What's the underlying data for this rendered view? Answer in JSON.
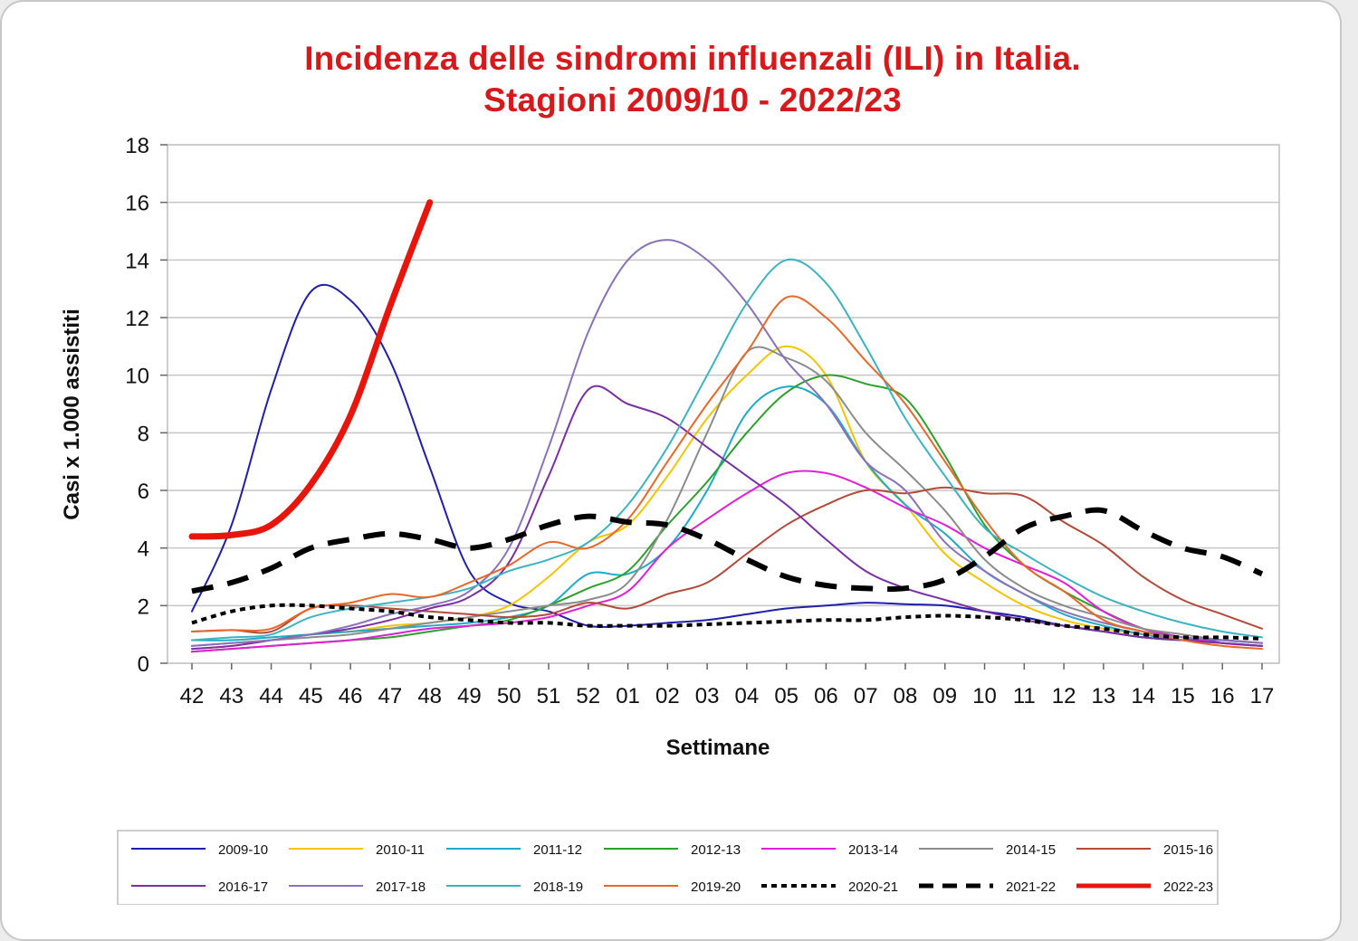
{
  "chart_data": {
    "type": "line",
    "title": [
      "Incidenza delle sindromi influenzali (ILI) in Italia.",
      "Stagioni 2009/10 - 2022/23"
    ],
    "xlabel": "Settimane",
    "ylabel": "Casi x 1.000 assistiti",
    "ylim": [
      0,
      18
    ],
    "yticks": [
      0,
      2,
      4,
      6,
      8,
      10,
      12,
      14,
      16,
      18
    ],
    "grid": true,
    "legend_position": "bottom",
    "categories": [
      "42",
      "43",
      "44",
      "45",
      "46",
      "47",
      "48",
      "49",
      "50",
      "51",
      "52",
      "01",
      "02",
      "03",
      "04",
      "05",
      "06",
      "07",
      "08",
      "09",
      "10",
      "11",
      "12",
      "13",
      "14",
      "15",
      "16",
      "17"
    ],
    "series": [
      {
        "name": "2009-10",
        "color": "#1f1fa8",
        "width": 2,
        "dash": "",
        "values": [
          1.8,
          4.8,
          9.5,
          12.9,
          12.6,
          10.5,
          6.8,
          3.2,
          2.1,
          1.8,
          1.3,
          1.3,
          1.4,
          1.5,
          1.7,
          1.9,
          2.0,
          2.1,
          2.05,
          2.0,
          1.8,
          1.6,
          1.3,
          1.1,
          0.9,
          0.8,
          0.8,
          0.7
        ]
      },
      {
        "name": "2010-11",
        "color": "#f5c400",
        "width": 2,
        "dash": "",
        "values": [
          0.5,
          0.6,
          0.8,
          1.0,
          1.1,
          1.3,
          1.4,
          1.6,
          2.0,
          3.0,
          4.2,
          4.8,
          6.5,
          8.5,
          10.0,
          11.0,
          10.0,
          7.0,
          5.5,
          3.8,
          2.8,
          2.0,
          1.5,
          1.2,
          1.0,
          0.8,
          0.7,
          0.6
        ]
      },
      {
        "name": "2011-12",
        "color": "#1faac8",
        "width": 2,
        "dash": "",
        "values": [
          0.8,
          0.8,
          0.9,
          1.0,
          1.1,
          1.2,
          1.3,
          1.4,
          1.6,
          2.0,
          3.1,
          3.1,
          4.0,
          6.0,
          8.7,
          9.6,
          9.0,
          7.0,
          5.5,
          4.5,
          3.2,
          2.4,
          1.7,
          1.3,
          1.0,
          0.8,
          0.7,
          0.6
        ]
      },
      {
        "name": "2012-13",
        "color": "#2ca02c",
        "width": 2,
        "dash": "",
        "values": [
          0.4,
          0.5,
          0.6,
          0.7,
          0.8,
          0.9,
          1.1,
          1.3,
          1.5,
          2.0,
          2.6,
          3.2,
          4.8,
          6.3,
          8.0,
          9.4,
          10.0,
          9.7,
          9.2,
          7.2,
          4.8,
          3.4,
          2.5,
          1.8,
          1.2,
          0.9,
          0.7,
          0.6
        ]
      },
      {
        "name": "2013-14",
        "color": "#e21fd6",
        "width": 2,
        "dash": "",
        "values": [
          0.4,
          0.5,
          0.6,
          0.7,
          0.8,
          1.0,
          1.2,
          1.3,
          1.4,
          1.6,
          2.0,
          2.5,
          4.0,
          5.0,
          5.9,
          6.6,
          6.6,
          6.1,
          5.4,
          4.8,
          4.0,
          3.4,
          2.8,
          1.8,
          1.2,
          0.9,
          0.7,
          0.6
        ]
      },
      {
        "name": "2014-15",
        "color": "#8c8c8c",
        "width": 2,
        "dash": "",
        "values": [
          0.6,
          0.7,
          0.8,
          0.9,
          1.0,
          1.2,
          1.4,
          1.6,
          1.8,
          2.0,
          2.2,
          2.8,
          5.0,
          8.0,
          10.8,
          10.6,
          9.8,
          8.0,
          6.7,
          5.3,
          3.6,
          2.6,
          2.0,
          1.6,
          1.2,
          1.0,
          0.8,
          0.7
        ]
      },
      {
        "name": "2015-16",
        "color": "#b34a3a",
        "width": 2,
        "dash": "",
        "values": [
          1.1,
          1.15,
          1.1,
          1.9,
          2.0,
          1.9,
          1.8,
          1.7,
          1.6,
          1.7,
          2.1,
          1.9,
          2.4,
          2.8,
          3.8,
          4.8,
          5.5,
          6.0,
          5.9,
          6.1,
          5.9,
          5.8,
          4.9,
          4.1,
          3.0,
          2.2,
          1.7,
          1.2
        ]
      },
      {
        "name": "2016-17",
        "color": "#7a2fa3",
        "width": 2,
        "dash": "",
        "values": [
          0.5,
          0.6,
          0.8,
          1.0,
          1.2,
          1.5,
          1.9,
          2.3,
          3.5,
          6.5,
          9.5,
          9.0,
          8.5,
          7.5,
          6.5,
          5.5,
          4.3,
          3.2,
          2.6,
          2.2,
          1.8,
          1.5,
          1.3,
          1.1,
          0.9,
          0.8,
          0.7,
          0.6
        ]
      },
      {
        "name": "2017-18",
        "color": "#8a72b8",
        "width": 2,
        "dash": "",
        "values": [
          0.6,
          0.7,
          0.8,
          1.0,
          1.3,
          1.7,
          2.0,
          2.5,
          4.0,
          7.5,
          11.5,
          14.0,
          14.7,
          14.0,
          12.5,
          10.5,
          9.0,
          7.0,
          6.0,
          4.2,
          3.2,
          2.4,
          1.8,
          1.4,
          1.1,
          0.9,
          0.8,
          0.7
        ]
      },
      {
        "name": "2018-19",
        "color": "#3cb4c0",
        "width": 2,
        "dash": "",
        "values": [
          0.8,
          0.9,
          1.0,
          1.6,
          1.9,
          2.1,
          2.3,
          2.6,
          3.2,
          3.6,
          4.2,
          5.5,
          7.5,
          10.0,
          12.5,
          14.0,
          13.2,
          11.0,
          8.5,
          6.5,
          4.7,
          3.8,
          3.0,
          2.3,
          1.8,
          1.4,
          1.1,
          0.9
        ]
      },
      {
        "name": "2019-20",
        "color": "#e8682a",
        "width": 2,
        "dash": "",
        "values": [
          1.1,
          1.15,
          1.2,
          1.9,
          2.1,
          2.4,
          2.3,
          2.8,
          3.4,
          4.2,
          4.0,
          5.0,
          7.0,
          9.0,
          10.8,
          12.7,
          12.0,
          10.5,
          9.0,
          7.0,
          5.0,
          3.4,
          2.5,
          1.5,
          1.1,
          0.8,
          0.6,
          0.5
        ]
      },
      {
        "name": "2020-21",
        "color": "#000000",
        "width": 4,
        "dash": "6,5",
        "values": [
          1.4,
          1.8,
          2.0,
          2.0,
          1.9,
          1.8,
          1.6,
          1.5,
          1.4,
          1.4,
          1.3,
          1.3,
          1.3,
          1.35,
          1.4,
          1.45,
          1.5,
          1.5,
          1.6,
          1.65,
          1.6,
          1.5,
          1.3,
          1.2,
          1.0,
          0.9,
          0.9,
          0.85
        ]
      },
      {
        "name": "2021-22",
        "color": "#000000",
        "width": 6,
        "dash": "24,16",
        "values": [
          2.5,
          2.8,
          3.3,
          4.0,
          4.3,
          4.5,
          4.3,
          4.0,
          4.3,
          4.8,
          5.1,
          4.9,
          4.8,
          4.3,
          3.6,
          3.0,
          2.7,
          2.6,
          2.6,
          2.9,
          3.7,
          4.7,
          5.1,
          5.3,
          4.6,
          4.0,
          3.7,
          3.1
        ]
      },
      {
        "name": "2022-23",
        "color": "#e8150d",
        "width": 7,
        "dash": "",
        "values": [
          4.4,
          4.45,
          4.8,
          6.2,
          8.6,
          12.4,
          16.0,
          null,
          null,
          null,
          null,
          null,
          null,
          null,
          null,
          null,
          null,
          null,
          null,
          null,
          null,
          null,
          null,
          null,
          null,
          null,
          null,
          null
        ]
      }
    ]
  }
}
